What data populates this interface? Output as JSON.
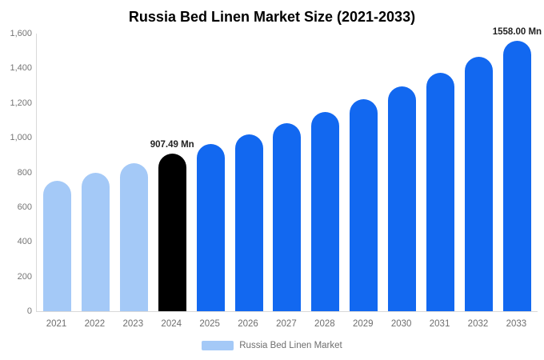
{
  "chart_data": {
    "type": "bar",
    "title": "Russia Bed Linen Market Size (2021-2033)",
    "categories": [
      "2021",
      "2022",
      "2023",
      "2024",
      "2025",
      "2026",
      "2027",
      "2028",
      "2029",
      "2030",
      "2031",
      "2032",
      "2033"
    ],
    "values": [
      750,
      800,
      855,
      907.49,
      962,
      1020,
      1085,
      1150,
      1222,
      1297,
      1375,
      1465,
      1558
    ],
    "unit": "Mn",
    "bar_roles": [
      "historical",
      "historical",
      "historical",
      "highlight",
      "forecast",
      "forecast",
      "forecast",
      "forecast",
      "forecast",
      "forecast",
      "forecast",
      "forecast",
      "forecast"
    ],
    "palette": {
      "historical": "#a4c9f7",
      "highlight": "#000000",
      "forecast": "#1268f0"
    },
    "ylim": [
      0,
      1600
    ],
    "ytick_labels": [
      "0",
      "200",
      "400",
      "600",
      "800",
      "1,000",
      "1,200",
      "1,400",
      "1,600"
    ],
    "ytick_values": [
      0,
      200,
      400,
      600,
      800,
      1000,
      1200,
      1400,
      1600
    ],
    "grid": false,
    "legend_position": "bottom",
    "annotations": [
      {
        "category": "2024",
        "text": "907.49 Mn"
      },
      {
        "category": "2033",
        "text": "1558.00 Mn"
      }
    ],
    "legend": {
      "label": "Russia Bed Linen Market",
      "swatch_color": "#a4c9f7"
    },
    "axis_line_color": "#d9d9d9",
    "tick_text_color": "#757575"
  }
}
